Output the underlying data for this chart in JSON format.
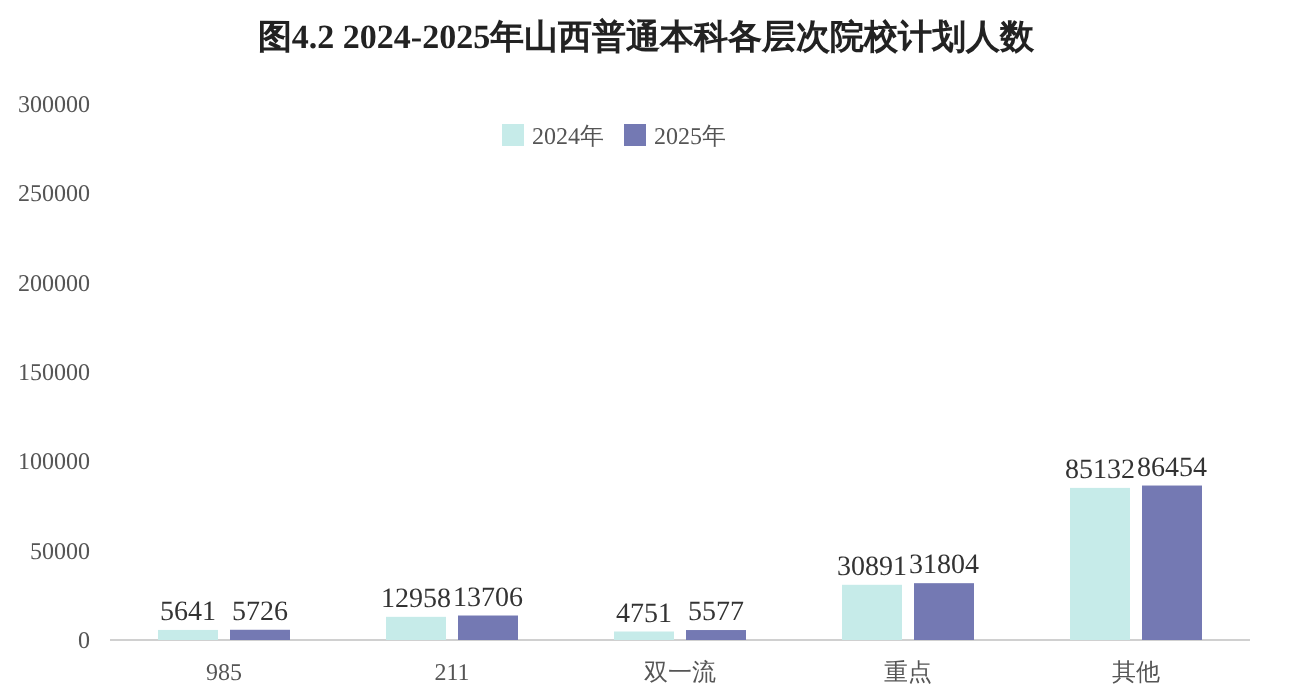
{
  "chart_data": {
    "type": "bar",
    "title": "图4.2 2024-2025年山西普通本科各层次院校计划人数",
    "categories": [
      "985",
      "211",
      "双一流",
      "重点",
      "其他"
    ],
    "series": [
      {
        "name": "2024年",
        "color": "#c6ebe9",
        "values": [
          5641,
          12958,
          4751,
          30891,
          85132
        ]
      },
      {
        "name": "2025年",
        "color": "#7479b3",
        "values": [
          5726,
          13706,
          5577,
          31804,
          86454
        ]
      }
    ],
    "ylim": [
      0,
      300000
    ],
    "yticks": [
      0,
      50000,
      100000,
      150000,
      200000,
      250000,
      300000
    ],
    "grid": false,
    "legend": "top",
    "data_labels": true
  }
}
